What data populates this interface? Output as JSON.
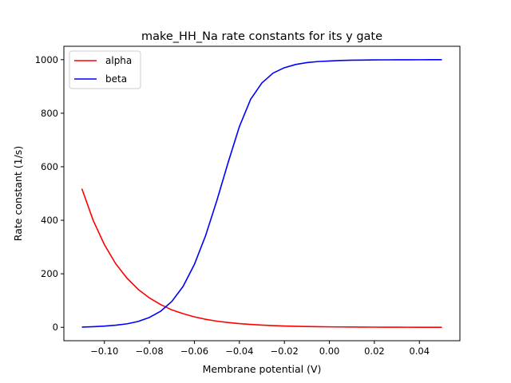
{
  "chart_data": {
    "type": "line",
    "title": "make_HH_Na rate constants for its y gate",
    "xlabel": "Membrane potential (V)",
    "ylabel": "Rate constant (1/s)",
    "xlim": [
      -0.118,
      0.058
    ],
    "ylim": [
      -50,
      1050
    ],
    "xticks": [
      {
        "value": -0.1,
        "label": "−0.10"
      },
      {
        "value": -0.08,
        "label": "−0.08"
      },
      {
        "value": -0.06,
        "label": "−0.06"
      },
      {
        "value": -0.04,
        "label": "−0.04"
      },
      {
        "value": -0.02,
        "label": "−0.02"
      },
      {
        "value": 0.0,
        "label": "0.00"
      },
      {
        "value": 0.02,
        "label": "0.02"
      },
      {
        "value": 0.04,
        "label": "0.04"
      }
    ],
    "yticks": [
      {
        "value": 0,
        "label": "0"
      },
      {
        "value": 200,
        "label": "200"
      },
      {
        "value": 400,
        "label": "400"
      },
      {
        "value": 600,
        "label": "600"
      },
      {
        "value": 800,
        "label": "800"
      },
      {
        "value": 1000,
        "label": "1000"
      }
    ],
    "grid": false,
    "legend_position": "top-left",
    "x": [
      -0.11,
      -0.105,
      -0.1,
      -0.095,
      -0.09,
      -0.085,
      -0.08,
      -0.075,
      -0.07,
      -0.065,
      -0.06,
      -0.055,
      -0.05,
      -0.045,
      -0.04,
      -0.035,
      -0.03,
      -0.025,
      -0.02,
      -0.015,
      -0.01,
      -0.005,
      0.0,
      0.005,
      0.01,
      0.015,
      0.02,
      0.025,
      0.03,
      0.035,
      0.04,
      0.045,
      0.05
    ],
    "series": [
      {
        "name": "alpha",
        "color": "#ff0000",
        "values": [
          518,
          400,
          309,
          238,
          184,
          142,
          110,
          85,
          65,
          51,
          39,
          30,
          23,
          18,
          14,
          11,
          8.4,
          6.5,
          5.0,
          3.9,
          3.0,
          2.3,
          1.8,
          1.4,
          1.1,
          0.8,
          0.65,
          0.5,
          0.39,
          0.3,
          0.23,
          0.18,
          0.14
        ]
      },
      {
        "name": "beta",
        "color": "#0000ff",
        "values": [
          1.0,
          2.5,
          4.5,
          8.0,
          13,
          22,
          37,
          60,
          97,
          153,
          235,
          343,
          474,
          616,
          750,
          852,
          913,
          950,
          970,
          982,
          989,
          993,
          995,
          997,
          998,
          998.5,
          999,
          999.3,
          999.5,
          999.6,
          999.7,
          999.8,
          999.9
        ]
      }
    ]
  }
}
